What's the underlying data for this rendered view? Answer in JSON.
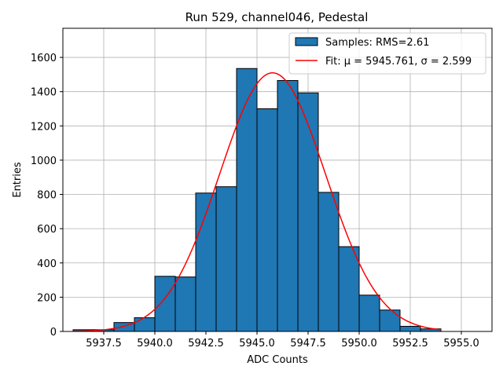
{
  "chart_data": {
    "type": "bar",
    "title": "Run 529, channel046, Pedestal",
    "xlabel": "ADC Counts",
    "ylabel": "Entries",
    "xlim": [
      5935.5,
      5956.5
    ],
    "ylim": [
      0,
      1770
    ],
    "grid": true,
    "legend_position": "top-right",
    "xticks": [
      5937.5,
      5940.0,
      5942.5,
      5945.0,
      5947.5,
      5950.0,
      5952.5,
      5955.0
    ],
    "xtick_labels": [
      "5937.5",
      "5940.0",
      "5942.5",
      "5945.0",
      "5947.5",
      "5950.0",
      "5952.5",
      "5955.0"
    ],
    "yticks": [
      0,
      200,
      400,
      600,
      800,
      1000,
      1200,
      1400,
      1600
    ],
    "ytick_labels": [
      "0",
      "200",
      "400",
      "600",
      "800",
      "1000",
      "1200",
      "1400",
      "1600"
    ],
    "bin_edges": [
      5936,
      5937,
      5938,
      5939,
      5940,
      5941,
      5942,
      5943,
      5944,
      5945,
      5946,
      5947,
      5948,
      5949,
      5950,
      5951,
      5952,
      5953,
      5954
    ],
    "counts": [
      10,
      10,
      52,
      80,
      322,
      318,
      808,
      845,
      1535,
      1300,
      1465,
      1393,
      812,
      495,
      212,
      125,
      30,
      15
    ],
    "fit": {
      "mu": 5945.761,
      "sigma": 2.599,
      "amplitude": 1510,
      "x_range": [
        5936,
        5954
      ]
    },
    "series": [
      {
        "name": "Samples: RMS=2.61",
        "type": "histogram",
        "color": "#1f77b4",
        "edgecolor": "#000000"
      },
      {
        "name": "Fit: μ = 5945.761, σ = 2.599",
        "type": "line",
        "color": "#ff0000"
      }
    ]
  }
}
